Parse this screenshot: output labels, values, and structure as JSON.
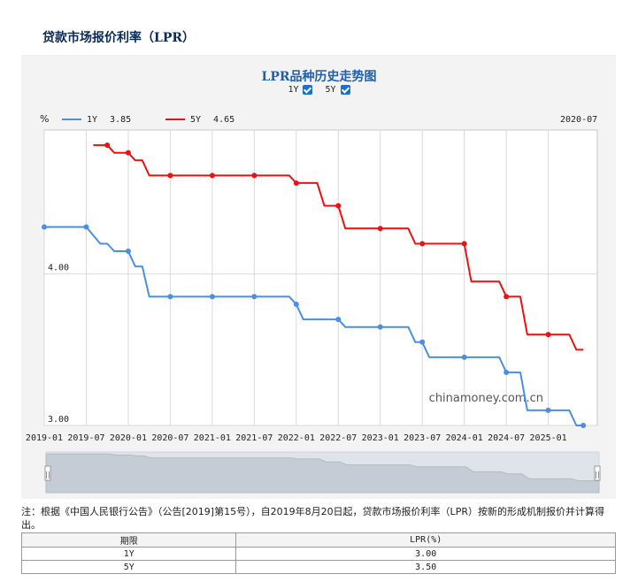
{
  "page": {
    "title": "贷款市场报价利率（LPR）"
  },
  "toggles": [
    {
      "label": "1Y",
      "checked": true
    },
    {
      "label": "5Y",
      "checked": true
    }
  ],
  "legend": {
    "unit": "%",
    "date": "2020-07",
    "items": [
      {
        "name": "1Y",
        "value": "3.85",
        "color": "#4a90e2"
      },
      {
        "name": "5Y",
        "value": "4.65",
        "color": "#ee1111"
      }
    ]
  },
  "watermark": "chinamoney.com.cn",
  "chart_data": {
    "type": "line",
    "title": "LPR品种历史走势图",
    "xlabel": "",
    "ylabel": "%",
    "x_ticks": [
      "2019-01",
      "2019-07",
      "2020-01",
      "2020-07",
      "2021-01",
      "2021-07",
      "2022-01",
      "2022-07",
      "2023-01",
      "2023-07",
      "2024-01",
      "2024-07",
      "2025-01"
    ],
    "y_ticks": [
      "3.00",
      "4.00"
    ],
    "ylim": [
      3.0,
      4.95
    ],
    "xlim": [
      "2019-01",
      "2025-08"
    ],
    "grid": true,
    "legend_position": "top-left",
    "series": [
      {
        "name": "1Y",
        "color": "#4a90e2",
        "points": [
          [
            "2019-01",
            4.31
          ],
          [
            "2019-07",
            4.31
          ],
          [
            "2019-09",
            4.2
          ],
          [
            "2019-10",
            4.2
          ],
          [
            "2019-11",
            4.15
          ],
          [
            "2020-01",
            4.15
          ],
          [
            "2020-02",
            4.05
          ],
          [
            "2020-03",
            4.05
          ],
          [
            "2020-04",
            3.85
          ],
          [
            "2021-12",
            3.85
          ],
          [
            "2022-01",
            3.8
          ],
          [
            "2022-02",
            3.7
          ],
          [
            "2022-07",
            3.7
          ],
          [
            "2022-08",
            3.65
          ],
          [
            "2023-05",
            3.65
          ],
          [
            "2023-06",
            3.55
          ],
          [
            "2023-07",
            3.55
          ],
          [
            "2023-08",
            3.45
          ],
          [
            "2024-06",
            3.45
          ],
          [
            "2024-07",
            3.35
          ],
          [
            "2024-09",
            3.35
          ],
          [
            "2024-10",
            3.1
          ],
          [
            "2025-04",
            3.1
          ],
          [
            "2025-05",
            3.0
          ],
          [
            "2025-06",
            3.0
          ]
        ],
        "markers": [
          "2019-01",
          "2019-07",
          "2020-01",
          "2020-07",
          "2021-01",
          "2021-07",
          "2022-01",
          "2022-07",
          "2023-01",
          "2023-07",
          "2024-01",
          "2024-07",
          "2025-01",
          "2025-06"
        ]
      },
      {
        "name": "5Y",
        "color": "#ee1111",
        "points": [
          [
            "2019-08",
            4.85
          ],
          [
            "2019-10",
            4.85
          ],
          [
            "2019-11",
            4.8
          ],
          [
            "2020-01",
            4.8
          ],
          [
            "2020-02",
            4.75
          ],
          [
            "2020-03",
            4.75
          ],
          [
            "2020-04",
            4.65
          ],
          [
            "2021-12",
            4.65
          ],
          [
            "2022-01",
            4.6
          ],
          [
            "2022-04",
            4.6
          ],
          [
            "2022-05",
            4.45
          ],
          [
            "2022-07",
            4.45
          ],
          [
            "2022-08",
            4.3
          ],
          [
            "2023-05",
            4.3
          ],
          [
            "2023-06",
            4.2
          ],
          [
            "2024-01",
            4.2
          ],
          [
            "2024-02",
            3.95
          ],
          [
            "2024-06",
            3.95
          ],
          [
            "2024-07",
            3.85
          ],
          [
            "2024-09",
            3.85
          ],
          [
            "2024-10",
            3.6
          ],
          [
            "2025-04",
            3.6
          ],
          [
            "2025-05",
            3.5
          ],
          [
            "2025-06",
            3.5
          ]
        ],
        "markers": [
          "2019-10",
          "2020-01",
          "2020-07",
          "2021-01",
          "2021-07",
          "2022-01",
          "2022-07",
          "2023-01",
          "2023-07",
          "2024-01",
          "2024-07",
          "2025-01"
        ]
      }
    ]
  },
  "zoom": {
    "start_handle": "||",
    "end_handle": "||"
  },
  "note": "注：根据《中国人民银行公告》（公告[2019]第15号），自2019年8月20日起，贷款市场报价利率（LPR）按新的形成机制报价并计算得出。",
  "table": {
    "headers": [
      "期限",
      "LPR(%)"
    ],
    "rows": [
      [
        "1Y",
        "3.00"
      ],
      [
        "5Y",
        "3.50"
      ]
    ]
  }
}
